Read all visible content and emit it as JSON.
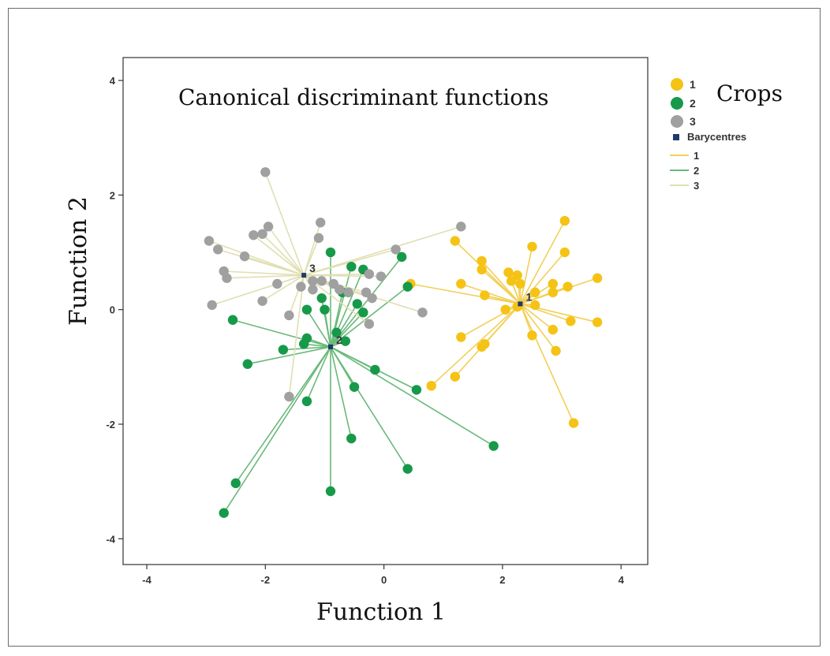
{
  "chart_data": {
    "type": "scatter",
    "title": "Canonical discriminant functions",
    "xlabel": "Function 1",
    "ylabel": "Function 2",
    "xlim": [
      -4.4,
      4.45
    ],
    "ylim": [
      -4.45,
      4.4
    ],
    "xticks": [
      -4,
      -2,
      0,
      2,
      4
    ],
    "yticks": [
      -4,
      -2,
      0,
      2,
      4
    ],
    "grid": false,
    "legend": {
      "title": "Crops",
      "placement": "top-right-outside",
      "marker_entries": [
        "1",
        "2",
        "3"
      ],
      "barycentre_label": "Barycentres",
      "line_entries": [
        "1",
        "2",
        "3"
      ]
    },
    "series": [
      {
        "name": "1",
        "marker_color": "#f5c315",
        "line_color": "#f3cf58",
        "centroid": [
          2.3,
          0.1
        ],
        "centroid_label": "1",
        "points": [
          [
            3.05,
            1.55
          ],
          [
            1.2,
            1.2
          ],
          [
            2.5,
            1.1
          ],
          [
            3.05,
            1.0
          ],
          [
            1.65,
            0.85
          ],
          [
            2.1,
            0.65
          ],
          [
            1.65,
            0.7
          ],
          [
            2.25,
            0.6
          ],
          [
            2.15,
            0.5
          ],
          [
            2.3,
            0.45
          ],
          [
            2.85,
            0.45
          ],
          [
            1.3,
            0.45
          ],
          [
            3.6,
            0.55
          ],
          [
            3.1,
            0.4
          ],
          [
            2.55,
            0.3
          ],
          [
            2.85,
            0.3
          ],
          [
            1.7,
            0.25
          ],
          [
            2.05,
            0.0
          ],
          [
            2.25,
            0.05
          ],
          [
            2.55,
            0.08
          ],
          [
            0.45,
            0.45
          ],
          [
            3.15,
            -0.2
          ],
          [
            3.6,
            -0.22
          ],
          [
            2.85,
            -0.35
          ],
          [
            2.5,
            -0.45
          ],
          [
            1.3,
            -0.48
          ],
          [
            1.7,
            -0.6
          ],
          [
            1.65,
            -0.65
          ],
          [
            2.9,
            -0.72
          ],
          [
            1.2,
            -1.17
          ],
          [
            0.8,
            -1.33
          ],
          [
            3.2,
            -1.98
          ]
        ]
      },
      {
        "name": "2",
        "marker_color": "#17994a",
        "line_color": "#6ab97a",
        "centroid": [
          -0.9,
          -0.65
        ],
        "centroid_label": "2",
        "points": [
          [
            -0.9,
            1.0
          ],
          [
            0.3,
            0.92
          ],
          [
            -0.55,
            0.75
          ],
          [
            -0.35,
            0.7
          ],
          [
            0.4,
            0.4
          ],
          [
            -0.7,
            0.3
          ],
          [
            -1.05,
            0.2
          ],
          [
            -0.45,
            0.1
          ],
          [
            -1.3,
            0.0
          ],
          [
            -1.0,
            0.0
          ],
          [
            -0.35,
            -0.05
          ],
          [
            -2.55,
            -0.18
          ],
          [
            -0.8,
            -0.4
          ],
          [
            -1.3,
            -0.5
          ],
          [
            -1.35,
            -0.6
          ],
          [
            -1.7,
            -0.7
          ],
          [
            -0.65,
            -0.55
          ],
          [
            -2.3,
            -0.95
          ],
          [
            -0.15,
            -1.05
          ],
          [
            -0.5,
            -1.35
          ],
          [
            0.55,
            -1.4
          ],
          [
            -1.3,
            -1.6
          ],
          [
            -0.55,
            -2.25
          ],
          [
            1.85,
            -2.38
          ],
          [
            0.4,
            -2.78
          ],
          [
            -2.5,
            -3.03
          ],
          [
            -0.9,
            -3.17
          ],
          [
            -2.7,
            -3.55
          ]
        ]
      },
      {
        "name": "3",
        "marker_color": "#a0a0a0",
        "line_color": "#e0dfb2",
        "centroid": [
          -1.35,
          0.6
        ],
        "centroid_label": "3",
        "points": [
          [
            -2.0,
            2.4
          ],
          [
            -1.07,
            1.52
          ],
          [
            -1.95,
            1.45
          ],
          [
            -2.2,
            1.3
          ],
          [
            -2.05,
            1.32
          ],
          [
            -1.1,
            1.25
          ],
          [
            -2.95,
            1.2
          ],
          [
            -2.8,
            1.05
          ],
          [
            0.2,
            1.05
          ],
          [
            1.3,
            1.45
          ],
          [
            -2.35,
            0.93
          ],
          [
            -2.7,
            0.67
          ],
          [
            -2.65,
            0.55
          ],
          [
            -1.2,
            0.5
          ],
          [
            -1.05,
            0.5
          ],
          [
            -1.8,
            0.45
          ],
          [
            -1.4,
            0.4
          ],
          [
            -1.2,
            0.35
          ],
          [
            -0.25,
            0.62
          ],
          [
            -0.05,
            0.58
          ],
          [
            -0.85,
            0.45
          ],
          [
            -0.75,
            0.35
          ],
          [
            -0.6,
            0.3
          ],
          [
            -0.3,
            0.3
          ],
          [
            -0.2,
            0.2
          ],
          [
            -2.05,
            0.15
          ],
          [
            -2.9,
            0.08
          ],
          [
            -1.6,
            -0.1
          ],
          [
            0.65,
            -0.05
          ],
          [
            -0.25,
            -0.25
          ],
          [
            -1.6,
            -1.52
          ]
        ]
      }
    ]
  }
}
